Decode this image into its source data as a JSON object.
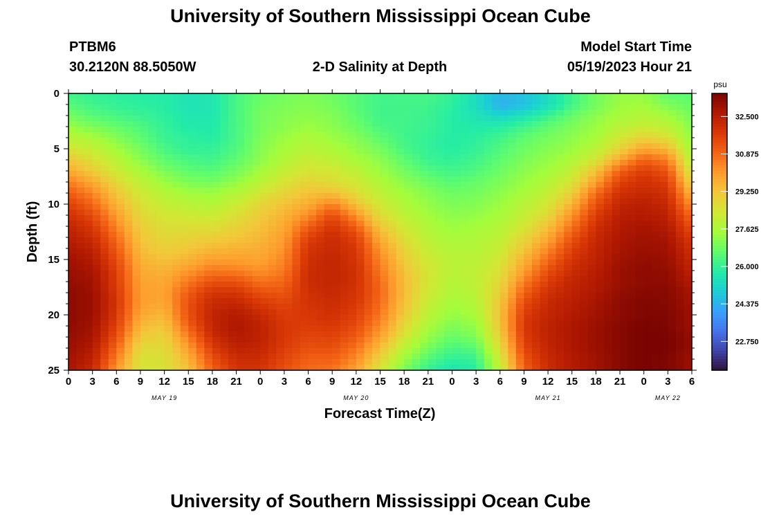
{
  "header": {
    "title_top": "University of Southern Mississippi Ocean Cube",
    "station": "PTBM6",
    "coords": "30.2120N  88.5050W",
    "model_start_label": "Model Start Time",
    "model_start_value": "05/19/2023 Hour 21",
    "title_bottom": "University of Southern Mississippi Ocean Cube"
  },
  "colors": {
    "colormap": [
      "#30123b",
      "#4145ab",
      "#4675ed",
      "#39a2fc",
      "#1bcfd4",
      "#24eca6",
      "#61fc6c",
      "#a4fc3b",
      "#d1e834",
      "#f3c63a",
      "#fe9b2d",
      "#f36315",
      "#d93806",
      "#b11901",
      "#7a0402"
    ]
  },
  "chart_data": {
    "type": "heatmap",
    "title": "2-D Salinity at Depth",
    "xlabel": "Forecast Time(Z)",
    "ylabel": "Depth (ft)",
    "x_tick_labels": [
      "0",
      "3",
      "6",
      "9",
      "12",
      "15",
      "18",
      "21",
      "0",
      "3",
      "6",
      "9",
      "12",
      "15",
      "18",
      "21",
      "0",
      "3",
      "6",
      "9",
      "12",
      "15",
      "18",
      "21",
      "0",
      "3",
      "6"
    ],
    "date_labels": [
      {
        "label": "MAY 19",
        "hour": 12
      },
      {
        "label": "MAY 20",
        "hour": 36
      },
      {
        "label": "MAY 21",
        "hour": 60
      },
      {
        "label": "MAY 22",
        "hour": 75
      }
    ],
    "x_hours": [
      0,
      3,
      6,
      9,
      12,
      15,
      18,
      21,
      24,
      27,
      30,
      33,
      36,
      39,
      42,
      45,
      48,
      51,
      54,
      57,
      60,
      63,
      66,
      69,
      72,
      75,
      78
    ],
    "xlim": [
      0,
      78
    ],
    "y_tick_labels": [
      "0",
      "5",
      "10",
      "15",
      "20",
      "25"
    ],
    "depth_ft": [
      0,
      1,
      2,
      3,
      4,
      5,
      6,
      7,
      8,
      9,
      10,
      11,
      12,
      13,
      14,
      15,
      16,
      17,
      18,
      19,
      20,
      21,
      22,
      23,
      24,
      25
    ],
    "ylim": [
      0,
      25
    ],
    "colorbar": {
      "units": "psu",
      "range": [
        21.5,
        33.5
      ],
      "tick_labels": [
        "32.500",
        "30.875",
        "29.250",
        "27.625",
        "26.000",
        "24.375",
        "22.750"
      ],
      "tick_values": [
        32.5,
        30.875,
        29.25,
        27.625,
        26.0,
        24.375,
        22.75
      ]
    },
    "salinity_psu": [
      [
        26.2,
        26.0,
        25.9,
        25.8,
        25.8,
        25.5,
        25.6,
        26.3,
        26.7,
        26.9,
        27.0,
        26.8,
        26.5,
        26.2,
        26.3,
        26.3,
        26.0,
        25.4,
        24.5,
        24.7,
        25.4,
        26.2,
        26.9,
        27.3,
        27.3,
        26.6,
        26.5
      ],
      [
        26.5,
        26.2,
        26.0,
        25.9,
        25.8,
        25.5,
        25.6,
        26.3,
        26.8,
        27.0,
        27.1,
        26.9,
        26.5,
        26.2,
        26.2,
        26.2,
        25.9,
        25.3,
        24.3,
        24.6,
        25.3,
        26.2,
        26.9,
        27.4,
        27.5,
        27.0,
        26.7
      ],
      [
        26.9,
        26.5,
        26.3,
        26.1,
        25.9,
        25.6,
        25.6,
        26.3,
        26.9,
        27.1,
        27.2,
        27.1,
        26.6,
        26.2,
        26.2,
        26.1,
        25.8,
        25.5,
        25.1,
        25.5,
        26.1,
        26.7,
        27.2,
        27.6,
        27.8,
        27.5,
        26.9
      ],
      [
        27.4,
        27.0,
        26.7,
        26.4,
        26.0,
        25.7,
        25.7,
        26.3,
        26.9,
        27.2,
        27.4,
        27.2,
        26.8,
        26.3,
        26.2,
        26.1,
        25.8,
        25.7,
        25.8,
        26.2,
        26.6,
        27.0,
        27.4,
        27.9,
        28.2,
        28.0,
        27.1
      ],
      [
        27.9,
        27.6,
        27.1,
        26.6,
        26.1,
        25.9,
        25.8,
        26.3,
        27.0,
        27.4,
        27.7,
        27.4,
        27.1,
        26.6,
        26.2,
        26.0,
        25.8,
        25.9,
        26.2,
        26.6,
        26.9,
        27.2,
        27.6,
        28.4,
        29.0,
        28.6,
        27.3
      ],
      [
        28.5,
        28.1,
        27.5,
        26.9,
        26.3,
        26.0,
        26.0,
        26.4,
        27.1,
        27.6,
        27.9,
        27.7,
        27.3,
        26.9,
        26.3,
        26.0,
        25.8,
        26.0,
        26.4,
        26.8,
        27.1,
        27.4,
        27.9,
        28.9,
        29.9,
        29.5,
        27.5
      ],
      [
        29.2,
        28.6,
        27.9,
        27.2,
        26.6,
        26.3,
        26.2,
        26.6,
        27.2,
        27.8,
        28.2,
        28.0,
        27.6,
        27.2,
        26.6,
        26.1,
        26.0,
        26.2,
        26.6,
        27.0,
        27.3,
        27.7,
        28.5,
        29.9,
        31.0,
        30.5,
        27.8
      ],
      [
        29.8,
        29.1,
        28.3,
        27.6,
        27.0,
        26.6,
        26.5,
        26.9,
        27.5,
        28.1,
        28.5,
        28.4,
        28.0,
        27.4,
        26.9,
        26.4,
        26.2,
        26.4,
        26.8,
        27.2,
        27.5,
        28.1,
        29.3,
        31.0,
        31.7,
        31.2,
        28.2
      ],
      [
        30.5,
        29.8,
        28.8,
        28.0,
        27.4,
        27.0,
        26.9,
        27.3,
        27.9,
        28.5,
        28.9,
        28.7,
        28.3,
        27.7,
        27.2,
        26.8,
        26.5,
        26.7,
        27.0,
        27.4,
        27.8,
        28.5,
        30.0,
        31.6,
        32.0,
        31.7,
        28.8
      ],
      [
        31.1,
        30.4,
        29.2,
        28.3,
        27.8,
        27.5,
        27.4,
        27.8,
        28.4,
        28.9,
        29.3,
        29.4,
        28.7,
        28.0,
        27.5,
        27.1,
        26.8,
        26.9,
        27.2,
        27.6,
        28.1,
        29.0,
        30.8,
        32.0,
        32.2,
        32.0,
        29.5
      ],
      [
        31.6,
        30.9,
        29.6,
        28.6,
        28.1,
        27.9,
        27.8,
        28.2,
        28.8,
        29.3,
        29.7,
        30.5,
        29.3,
        28.3,
        27.7,
        27.3,
        27.0,
        27.1,
        27.4,
        27.9,
        28.4,
        29.6,
        31.3,
        32.3,
        32.5,
        32.2,
        30.2
      ],
      [
        32.0,
        31.4,
        30.0,
        28.8,
        28.4,
        28.3,
        28.2,
        28.6,
        29.1,
        29.6,
        30.3,
        31.4,
        30.2,
        28.7,
        28.0,
        27.5,
        27.2,
        27.3,
        27.6,
        28.1,
        28.8,
        30.2,
        31.7,
        32.5,
        32.6,
        32.4,
        30.8
      ],
      [
        32.3,
        31.8,
        30.4,
        29.0,
        28.6,
        28.6,
        28.6,
        28.9,
        29.3,
        29.8,
        31.0,
        31.9,
        31.0,
        29.2,
        28.3,
        27.7,
        27.4,
        27.5,
        27.8,
        28.4,
        29.3,
        30.7,
        32.0,
        32.6,
        32.8,
        32.6,
        31.3
      ],
      [
        32.5,
        32.1,
        30.8,
        29.2,
        28.8,
        28.9,
        29.0,
        29.2,
        29.5,
        30.0,
        31.6,
        32.1,
        31.6,
        29.7,
        28.6,
        27.9,
        27.6,
        27.7,
        28.0,
        28.8,
        29.8,
        31.2,
        32.2,
        32.7,
        32.9,
        32.8,
        31.7
      ],
      [
        32.7,
        32.4,
        31.1,
        29.4,
        29.0,
        29.2,
        29.5,
        29.6,
        29.7,
        30.2,
        31.9,
        32.2,
        31.8,
        30.1,
        28.9,
        28.1,
        27.8,
        27.8,
        28.2,
        29.2,
        30.3,
        31.6,
        32.3,
        32.8,
        33.0,
        32.9,
        32.0
      ],
      [
        32.9,
        32.6,
        31.4,
        29.6,
        29.3,
        29.6,
        30.0,
        30.0,
        29.9,
        30.4,
        32.0,
        32.3,
        31.9,
        30.4,
        29.1,
        28.3,
        27.9,
        27.9,
        28.4,
        29.6,
        30.8,
        31.9,
        32.4,
        32.9,
        33.1,
        33.0,
        32.2
      ],
      [
        33.0,
        32.8,
        31.6,
        29.8,
        29.6,
        30.1,
        30.6,
        30.5,
        30.2,
        30.6,
        32.1,
        32.3,
        32.0,
        30.6,
        29.3,
        28.4,
        27.9,
        28.0,
        28.6,
        30.0,
        31.3,
        32.1,
        32.5,
        33.0,
        33.2,
        33.1,
        32.4
      ],
      [
        33.1,
        32.9,
        31.7,
        29.9,
        29.8,
        30.6,
        31.3,
        31.3,
        30.7,
        30.9,
        32.1,
        32.3,
        32.0,
        30.8,
        29.4,
        28.4,
        27.8,
        28.0,
        28.8,
        30.5,
        31.7,
        32.3,
        32.6,
        33.0,
        33.2,
        33.2,
        32.6
      ],
      [
        33.2,
        33.0,
        31.8,
        30.0,
        29.9,
        31.1,
        31.9,
        31.9,
        31.3,
        31.2,
        32.0,
        32.2,
        31.9,
        30.9,
        29.4,
        28.3,
        27.7,
        27.9,
        29.0,
        31.0,
        32.0,
        32.4,
        32.7,
        33.1,
        33.3,
        33.3,
        32.8
      ],
      [
        33.2,
        33.0,
        31.9,
        30.0,
        29.8,
        31.3,
        32.2,
        32.3,
        31.8,
        31.5,
        31.9,
        32.1,
        31.8,
        30.8,
        29.3,
        28.1,
        27.5,
        27.8,
        29.2,
        31.4,
        32.2,
        32.5,
        32.8,
        33.2,
        33.4,
        33.3,
        32.9
      ],
      [
        33.2,
        33.0,
        31.8,
        29.8,
        29.5,
        31.3,
        32.3,
        32.6,
        32.2,
        31.7,
        31.8,
        32.0,
        31.6,
        30.6,
        29.1,
        27.9,
        27.3,
        27.6,
        29.3,
        31.7,
        32.3,
        32.6,
        32.9,
        33.2,
        33.4,
        33.4,
        33.0
      ],
      [
        33.2,
        32.9,
        31.6,
        29.5,
        29.2,
        31.0,
        32.3,
        32.7,
        32.4,
        31.8,
        31.7,
        31.8,
        31.4,
        30.3,
        28.8,
        27.6,
        27.0,
        27.3,
        29.2,
        31.8,
        32.4,
        32.7,
        33.0,
        33.3,
        33.5,
        33.4,
        33.0
      ],
      [
        33.1,
        32.8,
        31.3,
        29.1,
        28.9,
        30.5,
        32.1,
        32.6,
        32.4,
        31.8,
        31.5,
        31.6,
        31.1,
        29.9,
        28.4,
        27.3,
        26.7,
        27.0,
        29.0,
        31.7,
        32.4,
        32.7,
        33.0,
        33.3,
        33.5,
        33.5,
        33.1
      ],
      [
        33.0,
        32.6,
        30.9,
        28.7,
        28.7,
        30.0,
        31.7,
        32.4,
        32.3,
        31.7,
        31.3,
        31.3,
        30.7,
        29.4,
        27.9,
        26.9,
        26.3,
        26.5,
        28.7,
        31.5,
        32.3,
        32.7,
        33.0,
        33.3,
        33.5,
        33.5,
        33.1
      ],
      [
        32.9,
        32.4,
        30.5,
        28.5,
        28.6,
        29.6,
        31.3,
        32.1,
        32.1,
        31.5,
        31.0,
        31.0,
        30.3,
        28.9,
        27.4,
        26.4,
        25.9,
        26.1,
        28.3,
        31.2,
        32.2,
        32.6,
        32.9,
        33.3,
        33.5,
        33.4,
        33.0
      ],
      [
        32.8,
        32.2,
        30.1,
        28.4,
        28.5,
        29.3,
        31.0,
        31.9,
        31.9,
        31.3,
        30.8,
        30.7,
        29.9,
        28.4,
        26.9,
        26.0,
        25.5,
        25.8,
        28.0,
        31.0,
        32.1,
        32.6,
        32.9,
        33.3,
        33.5,
        33.4,
        33.0
      ]
    ]
  }
}
